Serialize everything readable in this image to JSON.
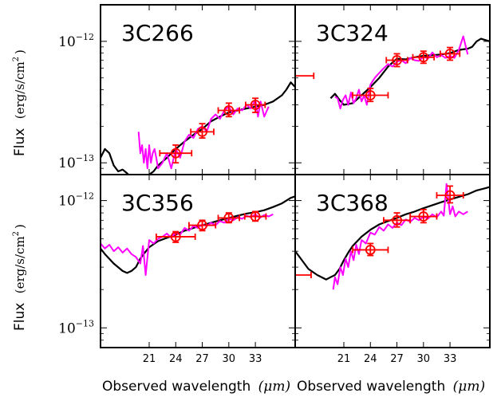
{
  "figure": {
    "ylabel_prefix": "Flux",
    "ylabel_units": "(erg/s/cm",
    "ylabel_sup": "2",
    "ylabel_close": ")",
    "xlabel_prefix": "Observed wavelength",
    "xlabel_units": "(μm)"
  },
  "colors": {
    "model": "#000000",
    "irs_spectrum": "#ff00ff",
    "photometry": "#ff0000",
    "frame": "#000000"
  },
  "chart_data": [
    {
      "type": "line",
      "title": "3C266",
      "xlim": [
        15.5,
        37.5
      ],
      "ylim": [
        8e-14,
        2e-12
      ],
      "yscale": "log",
      "xticks": [
        21,
        24,
        27,
        30,
        33
      ],
      "yticks": [
        {
          "value": 1e-13,
          "label": "10−13"
        },
        {
          "value": 1e-12,
          "label": "10−12"
        }
      ],
      "show_xticklabels": false,
      "show_yticklabels": true,
      "series": [
        {
          "role": "model",
          "x": [
            15.5,
            16.0,
            16.5,
            17.0,
            17.5,
            18.0,
            18.5,
            19.0,
            19.5,
            20.0,
            20.5,
            21.0,
            21.5,
            22.0,
            23.0,
            24.0,
            25.0,
            26.0,
            27.0,
            28.0,
            29.0,
            30.0,
            31.0,
            32.0,
            33.0,
            34.0,
            35.0,
            36.0,
            36.5,
            37.0,
            37.5
          ],
          "y": [
            1.1e-13,
            1.3e-13,
            1.2e-13,
            9.5e-14,
            8.5e-14,
            8.8e-14,
            8.2e-14,
            7.5e-14,
            7.5e-14,
            7.8e-14,
            7.6e-14,
            8e-14,
            8.5e-14,
            9.5e-14,
            1.1e-13,
            1.3e-13,
            1.5e-13,
            1.7e-13,
            1.9e-13,
            2.2e-13,
            2.4e-13,
            2.6e-13,
            2.7e-13,
            2.8e-13,
            2.9e-13,
            3e-13,
            3.2e-13,
            3.6e-13,
            4e-13,
            4.6e-13,
            4.2e-13
          ]
        },
        {
          "role": "irs_spectrum",
          "x": [
            19.8,
            20.0,
            20.2,
            20.4,
            20.6,
            20.8,
            21.0,
            21.2,
            21.4,
            21.6,
            21.8,
            22.0,
            22.5,
            23.0,
            23.5,
            24.0,
            24.5,
            25.0,
            25.5,
            26.0,
            26.5,
            27.0,
            27.5,
            28.0,
            28.5,
            29.0,
            29.5,
            30.0,
            30.5,
            31.0,
            31.5,
            32.0,
            32.5,
            33.0,
            33.3,
            33.6,
            34.0,
            34.5
          ],
          "y": [
            1.8e-13,
            1.2e-13,
            1.4e-13,
            1e-13,
            1.3e-13,
            9e-14,
            1.4e-13,
            1e-13,
            1.2e-13,
            1.3e-13,
            1.1e-13,
            9e-14,
            1e-13,
            1.2e-13,
            9e-14,
            1.3e-13,
            1.1e-13,
            1.5e-13,
            1.7e-13,
            1.6e-13,
            1.9e-13,
            2e-13,
            1.8e-13,
            2.3e-13,
            2.5e-13,
            2.3e-13,
            2.7e-13,
            2.9e-13,
            2.5e-13,
            2.8e-13,
            2.7e-13,
            3e-13,
            2.8e-13,
            3.3e-13,
            2.4e-13,
            3.2e-13,
            2.4e-13,
            2.9e-13
          ]
        },
        {
          "role": "photometry",
          "x": [
            24,
            27,
            30,
            33
          ],
          "y": [
            1.2e-13,
            1.8e-13,
            2.7e-13,
            3e-13
          ],
          "xerr": [
            [
              22.2,
              25.8
            ],
            [
              25.7,
              28.3
            ],
            [
              28.8,
              31.2
            ],
            [
              31.9,
              34.1
            ]
          ],
          "yerr": [
            [
              1e-13,
              1.4e-13
            ],
            [
              1.6e-13,
              2.1e-13
            ],
            [
              2.4e-13,
              3.1e-13
            ],
            [
              2.6e-13,
              3.4e-13
            ]
          ]
        }
      ]
    },
    {
      "type": "line",
      "title": "3C324",
      "xlim": [
        15.5,
        37.5
      ],
      "ylim": [
        8e-14,
        2e-12
      ],
      "yscale": "log",
      "xticks": [
        21,
        24,
        27,
        30,
        33
      ],
      "yticks": [
        {
          "value": 1e-13
        },
        {
          "value": 1e-12
        }
      ],
      "show_xticklabels": false,
      "show_yticklabels": false,
      "series": [
        {
          "role": "model",
          "x": [
            19.5,
            20.0,
            20.5,
            21.0,
            22.0,
            23.0,
            24.0,
            25.0,
            26.0,
            27.0,
            28.0,
            29.0,
            30.0,
            31.0,
            32.0,
            33.0,
            34.0,
            35.0,
            35.5,
            36.0,
            36.5,
            37.5
          ],
          "y": [
            3.4e-13,
            3.7e-13,
            3.3e-13,
            3e-13,
            3.1e-13,
            3.6e-13,
            4.2e-13,
            5e-13,
            6.2e-13,
            7.2e-13,
            7.1e-13,
            7.4e-13,
            7.6e-13,
            7.7e-13,
            7.8e-13,
            8e-13,
            8.5e-13,
            8.7e-13,
            9e-13,
            1e-12,
            1.05e-12,
            1e-12
          ]
        },
        {
          "role": "irs_spectrum",
          "x": [
            20.0,
            20.3,
            20.6,
            20.9,
            21.2,
            21.5,
            21.8,
            22.1,
            22.4,
            22.7,
            23.0,
            23.3,
            23.6,
            24.0,
            24.5,
            25.0,
            25.5,
            26.0,
            26.5,
            27.0,
            27.5,
            28.0,
            28.5,
            29.0,
            29.5,
            30.0,
            30.5,
            31.0,
            31.5,
            32.0,
            32.5,
            33.0,
            33.5,
            34.0,
            34.5,
            35.0
          ],
          "y": [
            3.5e-13,
            3.4e-13,
            2.8e-13,
            3.3e-13,
            3.6e-13,
            3e-13,
            3.8e-13,
            3.1e-13,
            3.4e-13,
            4e-13,
            3.2e-13,
            3.6e-13,
            3e-13,
            4.4e-13,
            5e-13,
            5.5e-13,
            6e-13,
            6.5e-13,
            6.2e-13,
            6.8e-13,
            7e-13,
            6.6e-13,
            7.3e-13,
            7e-13,
            6.9e-13,
            7.5e-13,
            7.2e-13,
            8.1e-13,
            7.4e-13,
            7.7e-13,
            7.3e-13,
            7.6e-13,
            7.3e-13,
            8.5e-13,
            1.1e-12,
            7.8e-13
          ]
        },
        {
          "role": "photometry",
          "x": [
            24,
            27,
            30,
            33
          ],
          "y": [
            3.6e-13,
            7e-13,
            7.4e-13,
            7.9e-13
          ],
          "xerr": [
            [
              22.0,
              26.0
            ],
            [
              25.8,
              28.2
            ],
            [
              28.8,
              31.2
            ],
            [
              31.9,
              34.1
            ]
          ],
          "yerr": [
            [
              3.2e-13,
              4.1e-13
            ],
            [
              6.2e-13,
              7.9e-13
            ],
            [
              6.6e-13,
              8.3e-13
            ],
            [
              7e-13,
              8.9e-13
            ]
          ]
        },
        {
          "role": "photometry_errbar_only",
          "x": [
            16.0
          ],
          "y": [
            5.2e-13
          ],
          "xerr": [
            [
              15.5,
              17.6
            ]
          ]
        }
      ]
    },
    {
      "type": "line",
      "title": "3C356",
      "xlim": [
        15.5,
        37.5
      ],
      "ylim": [
        7e-14,
        1.6e-12
      ],
      "yscale": "log",
      "xticks": [
        21,
        24,
        27,
        30,
        33
      ],
      "yticks": [
        {
          "value": 1e-13,
          "label": "10−13"
        },
        {
          "value": 1e-12,
          "label": "10−12"
        }
      ],
      "show_xticklabels": true,
      "show_yticklabels": true,
      "series": [
        {
          "role": "model",
          "x": [
            15.5,
            16.0,
            17.0,
            18.0,
            18.5,
            19.0,
            19.5,
            20.0,
            20.5,
            21.0,
            22.0,
            23.0,
            24.0,
            25.0,
            26.0,
            27.0,
            28.0,
            29.0,
            30.0,
            31.0,
            32.0,
            33.0,
            34.0,
            35.0,
            36.0,
            37.0,
            37.5
          ],
          "y": [
            4.2e-13,
            3.8e-13,
            3.2e-13,
            2.8e-13,
            2.7e-13,
            2.8e-13,
            3e-13,
            3.5e-13,
            3.9e-13,
            4.3e-13,
            4.8e-13,
            5.1e-13,
            5.4e-13,
            5.8e-13,
            6.1e-13,
            6.4e-13,
            6.7e-13,
            7e-13,
            7.3e-13,
            7.6e-13,
            7.9e-13,
            8.1e-13,
            8.4e-13,
            8.9e-13,
            9.5e-13,
            1.05e-12,
            1.08e-12
          ]
        },
        {
          "role": "irs_spectrum",
          "x": [
            15.5,
            16.0,
            16.5,
            17.0,
            17.5,
            18.0,
            18.5,
            19.0,
            19.5,
            20.0,
            20.3,
            20.6,
            21.0,
            21.5,
            22.0,
            22.5,
            23.0,
            23.5,
            24.0,
            24.5,
            25.0,
            25.5,
            26.0,
            26.5,
            27.0,
            27.5,
            28.0,
            28.5,
            29.0,
            29.5,
            30.0,
            30.5,
            31.0,
            31.5,
            32.0,
            32.5,
            33.0,
            33.5,
            34.0,
            34.5,
            35.0
          ],
          "y": [
            4.6e-13,
            4.2e-13,
            4.5e-13,
            4e-13,
            4.3e-13,
            3.9e-13,
            4.2e-13,
            3.8e-13,
            3.6e-13,
            3.2e-13,
            4.4e-13,
            2.6e-13,
            4.9e-13,
            4.6e-13,
            5e-13,
            5.2e-13,
            5.5e-13,
            5.1e-13,
            5.6e-13,
            5.4e-13,
            6.1e-13,
            5.8e-13,
            6.3e-13,
            6.1e-13,
            6.5e-13,
            6.3e-13,
            6.7e-13,
            6.4e-13,
            6.9e-13,
            6.7e-13,
            7.2e-13,
            7e-13,
            7.4e-13,
            7.2e-13,
            7.6e-13,
            7.4e-13,
            7.8e-13,
            7.3e-13,
            7.7e-13,
            7.5e-13,
            7.8e-13
          ]
        },
        {
          "role": "photometry",
          "x": [
            24,
            27,
            30,
            33
          ],
          "y": [
            5.2e-13,
            6.4e-13,
            7.3e-13,
            7.5e-13
          ],
          "xerr": [
            [
              21.8,
              26.2
            ],
            [
              25.5,
              28.5
            ],
            [
              28.8,
              31.2
            ],
            [
              31.8,
              34.2
            ]
          ],
          "yerr": [
            [
              4.7e-13,
              5.7e-13
            ],
            [
              5.8e-13,
              7e-13
            ],
            [
              6.7e-13,
              8e-13
            ],
            [
              6.9e-13,
              8.2e-13
            ]
          ]
        }
      ]
    },
    {
      "type": "line",
      "title": "3C368",
      "xlim": [
        15.5,
        37.5
      ],
      "ylim": [
        7e-14,
        1.6e-12
      ],
      "yscale": "log",
      "xticks": [
        21,
        24,
        27,
        30,
        33
      ],
      "yticks": [
        {
          "value": 1e-13
        },
        {
          "value": 1e-12
        }
      ],
      "show_xticklabels": true,
      "show_yticklabels": false,
      "series": [
        {
          "role": "model",
          "x": [
            15.5,
            16.0,
            17.0,
            18.0,
            19.0,
            19.5,
            20.0,
            20.5,
            21.0,
            21.5,
            22.0,
            23.0,
            24.0,
            25.0,
            26.0,
            27.0,
            28.0,
            29.0,
            30.0,
            31.0,
            32.0,
            33.0,
            34.0,
            35.0,
            36.0,
            37.0,
            37.5
          ],
          "y": [
            4e-13,
            3.6e-13,
            2.9e-13,
            2.6e-13,
            2.4e-13,
            2.5e-13,
            2.6e-13,
            2.9e-13,
            3.4e-13,
            3.9e-13,
            4.4e-13,
            5.2e-13,
            5.9e-13,
            6.5e-13,
            6.9e-13,
            7.3e-13,
            7.8e-13,
            8.2e-13,
            8.7e-13,
            9.2e-13,
            9.7e-13,
            1.02e-12,
            1.07e-12,
            1.12e-12,
            1.2e-12,
            1.25e-12,
            1.28e-12
          ]
        },
        {
          "role": "irs_spectrum",
          "x": [
            19.8,
            20.0,
            20.3,
            20.6,
            20.9,
            21.2,
            21.5,
            21.8,
            22.1,
            22.4,
            22.7,
            23.0,
            23.5,
            24.0,
            24.5,
            25.0,
            25.5,
            26.0,
            26.5,
            27.0,
            27.5,
            28.0,
            28.5,
            29.0,
            29.5,
            30.0,
            30.5,
            31.0,
            31.5,
            32.0,
            32.3,
            32.6,
            33.0,
            33.3,
            33.6,
            34.0,
            34.5,
            35.0
          ],
          "y": [
            2e-13,
            2.5e-13,
            2.2e-13,
            3e-13,
            2.6e-13,
            3.5e-13,
            3e-13,
            4e-13,
            3.4e-13,
            4.5e-13,
            3.8e-13,
            4.9e-13,
            4.6e-13,
            5.6e-13,
            5.4e-13,
            6.2e-13,
            5.8e-13,
            6.5e-13,
            6.1e-13,
            6.7e-13,
            6.4e-13,
            7.1e-13,
            6.8e-13,
            7.3e-13,
            7e-13,
            7.5e-13,
            7.2e-13,
            7.8e-13,
            7.4e-13,
            8.2e-13,
            7.6e-13,
            1.35e-12,
            7.8e-13,
            9e-13,
            7.5e-13,
            8.2e-13,
            7.8e-13,
            8.2e-13
          ]
        },
        {
          "role": "photometry",
          "x": [
            24,
            27,
            30,
            33
          ],
          "y": [
            4.1e-13,
            7e-13,
            7.5e-13,
            1.1e-12
          ],
          "xerr": [
            [
              22.0,
              26.0
            ],
            [
              25.5,
              28.5
            ],
            [
              28.5,
              31.5
            ],
            [
              31.5,
              34.5
            ]
          ],
          "yerr": [
            [
              3.7e-13,
              4.6e-13
            ],
            [
              6.2e-13,
              8e-13
            ],
            [
              6.7e-13,
              8.5e-13
            ],
            [
              9.6e-13,
              1.3e-12
            ]
          ]
        },
        {
          "role": "photometry_errbar_only",
          "x": [
            16.0
          ],
          "y": [
            2.6e-13
          ],
          "xerr": [
            [
              15.5,
              17.3
            ]
          ]
        }
      ]
    }
  ]
}
